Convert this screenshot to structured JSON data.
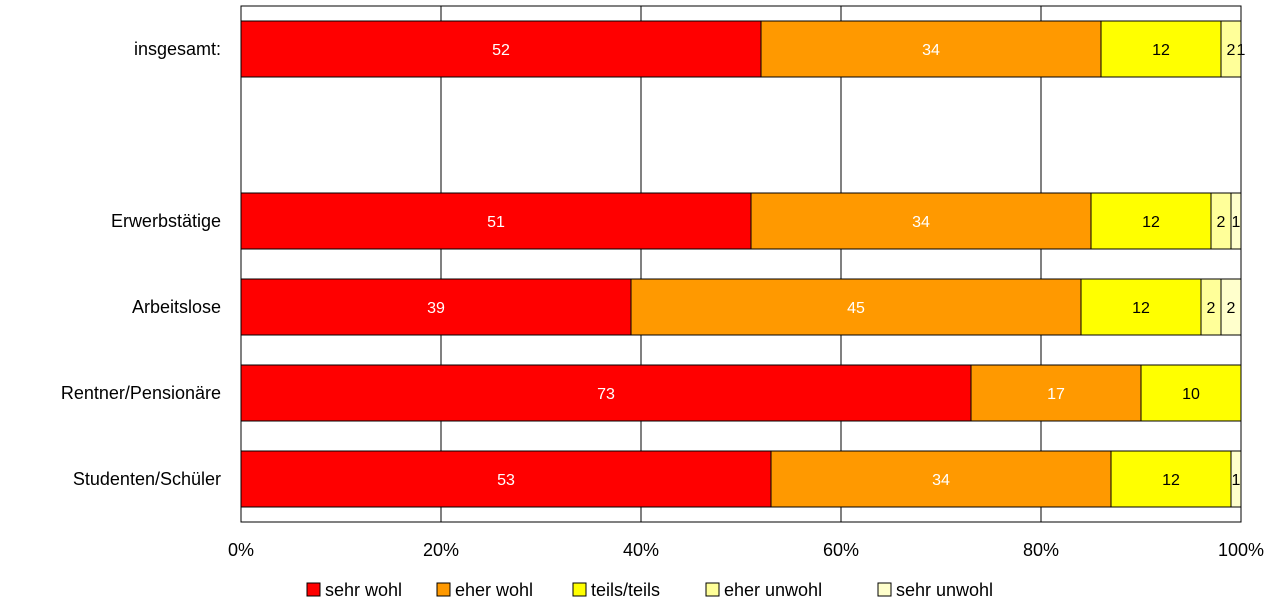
{
  "chart_data": {
    "type": "bar",
    "orientation": "horizontal",
    "stacked": true,
    "percent_stacked": true,
    "categories": [
      "insgesamt:",
      "",
      "Erwerbstätige",
      "Arbeitslose",
      "Rentner/Pensionäre",
      "Studenten/Schüler"
    ],
    "series": [
      {
        "name": "sehr wohl",
        "color": "#ff0000",
        "label_color": "#ffffff",
        "values": [
          52,
          null,
          51,
          39,
          73,
          53
        ]
      },
      {
        "name": "eher wohl",
        "color": "#ff9900",
        "label_color": "#ffffff",
        "values": [
          34,
          null,
          34,
          45,
          17,
          34
        ]
      },
      {
        "name": "teils/teils",
        "color": "#ffff00",
        "label_color": "#000000",
        "values": [
          12,
          null,
          12,
          12,
          10,
          12
        ]
      },
      {
        "name": "eher unwohl",
        "color": "#ffff99",
        "label_color": "#000000",
        "values": [
          2,
          null,
          2,
          2,
          null,
          null
        ]
      },
      {
        "name": "sehr unwohl",
        "color": "#ffffcc",
        "label_color": "#000000",
        "values": [
          1,
          null,
          1,
          2,
          null,
          1
        ]
      }
    ],
    "x_ticks": [
      "0%",
      "20%",
      "40%",
      "60%",
      "80%",
      "100%"
    ],
    "xlim": [
      0,
      100
    ],
    "grid": true,
    "legend": "bottom",
    "title": "",
    "xlabel": "",
    "ylabel": ""
  }
}
